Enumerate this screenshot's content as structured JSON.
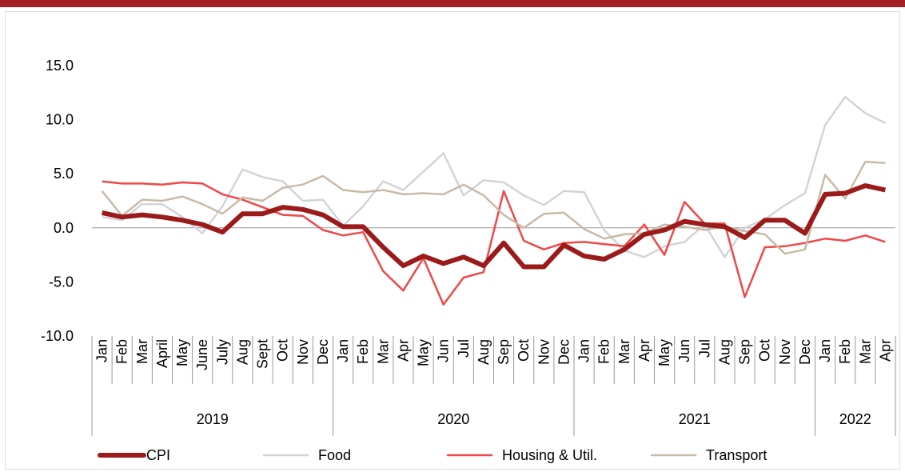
{
  "chart_data": {
    "type": "line",
    "groups": [
      {
        "label": "2019",
        "categories": [
          "Jan",
          "Feb",
          "Mar",
          "April",
          "May",
          "June",
          "July",
          "Aug",
          "Sept",
          "Oct",
          "Nov",
          "Dec"
        ]
      },
      {
        "label": "2020",
        "categories": [
          "Jan",
          "Feb",
          "Mar",
          "Apr",
          "May",
          "Jun",
          "Jul",
          "Aug",
          "Sep",
          "Oct",
          "Nov",
          "Dec"
        ]
      },
      {
        "label": "2021",
        "categories": [
          "Jan",
          "Feb",
          "Mar",
          "Apr",
          "May",
          "Jun",
          "Jul",
          "Aug",
          "Sep",
          "Oct",
          "Nov",
          "Dec"
        ]
      },
      {
        "label": "2022",
        "categories": [
          "Jan",
          "Feb",
          "Mar",
          "Apr"
        ]
      }
    ],
    "series": [
      {
        "name": "CPI",
        "color": "#9b1b1b",
        "width": 6,
        "values": [
          1.4,
          1.0,
          1.2,
          1.0,
          0.7,
          0.3,
          -0.4,
          1.3,
          1.3,
          1.9,
          1.7,
          1.2,
          0.1,
          0.1,
          -1.8,
          -3.5,
          -2.6,
          -3.3,
          -2.7,
          -3.5,
          -1.4,
          -3.6,
          -3.6,
          -1.6,
          -2.6,
          -2.9,
          -2.0,
          -0.6,
          -0.2,
          0.6,
          0.3,
          0.1,
          -0.9,
          0.7,
          0.7,
          -0.5,
          3.1,
          3.2,
          3.9,
          3.5
        ]
      },
      {
        "name": "Food",
        "color": "#d3d3da",
        "width": 2.5,
        "values": [
          1.0,
          0.7,
          2.2,
          2.2,
          1.0,
          -0.5,
          2.0,
          5.4,
          4.7,
          4.3,
          2.5,
          2.6,
          0.2,
          2.0,
          4.3,
          3.5,
          5.2,
          6.9,
          3.0,
          4.4,
          4.2,
          3.0,
          2.1,
          3.4,
          3.3,
          -0.2,
          -2.1,
          -2.7,
          -1.7,
          -1.3,
          0.3,
          -2.7,
          0.0,
          0.8,
          2.1,
          3.2,
          9.5,
          12.1,
          10.6,
          9.7
        ]
      },
      {
        "name": "Housing & Util.",
        "color": "#ef4848",
        "width": 2.5,
        "values": [
          4.3,
          4.1,
          4.1,
          4.0,
          4.2,
          4.1,
          3.1,
          2.6,
          1.9,
          1.2,
          1.1,
          -0.2,
          -0.7,
          -0.4,
          -4.0,
          -5.8,
          -2.8,
          -7.1,
          -4.6,
          -4.1,
          3.4,
          -1.2,
          -2.0,
          -1.4,
          -1.3,
          -1.5,
          -1.7,
          0.3,
          -2.5,
          2.4,
          0.4,
          0.4,
          -6.4,
          -1.8,
          -1.7,
          -1.4,
          -1.0,
          -1.2,
          -0.7,
          -1.3
        ]
      },
      {
        "name": "Transport",
        "color": "#c7bba7",
        "width": 2.5,
        "values": [
          3.4,
          1.1,
          2.6,
          2.5,
          2.9,
          2.2,
          1.3,
          2.8,
          2.5,
          3.7,
          4.0,
          4.8,
          3.5,
          3.3,
          3.5,
          3.1,
          3.2,
          3.1,
          4.0,
          3.0,
          1.2,
          0.0,
          1.3,
          1.4,
          -0.1,
          -1.0,
          -0.6,
          -0.5,
          0.3,
          0.1,
          -0.2,
          0.1,
          -0.3,
          -0.6,
          -2.4,
          -2.0,
          4.9,
          2.7,
          6.1,
          6.0
        ]
      }
    ],
    "ylim": [
      -10,
      15
    ],
    "yticks": [
      {
        "value": -10,
        "label": "-10.0"
      },
      {
        "value": -5,
        "label": "-5.0"
      },
      {
        "value": 0,
        "label": "0.0"
      },
      {
        "value": 5,
        "label": "5.0"
      },
      {
        "value": 10,
        "label": "10.0"
      },
      {
        "value": 15,
        "label": "15.0"
      }
    ],
    "legend": "bottom"
  }
}
